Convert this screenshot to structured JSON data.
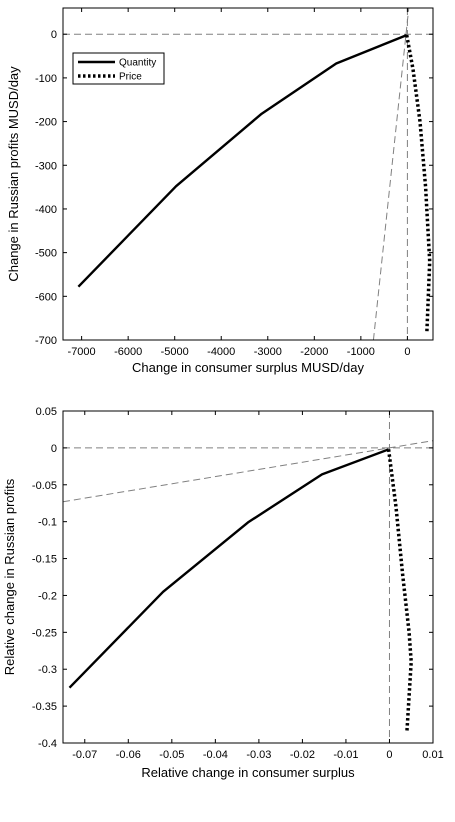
{
  "chart_data": [
    {
      "type": "line",
      "title": "",
      "xlabel": "Change in consumer surplus MUSD/day",
      "ylabel": "Change in Russian profits MUSD/day",
      "xlim": [
        -7400,
        550
      ],
      "ylim": [
        -700,
        60
      ],
      "xticks": [
        -7000,
        -6000,
        -5000,
        -4000,
        -3000,
        -2000,
        -1000,
        0
      ],
      "yticks": [
        0,
        -100,
        -200,
        -300,
        -400,
        -500,
        -600,
        -700
      ],
      "grid": false,
      "legend": {
        "placement": "top-left",
        "entries": [
          "Quantity",
          "Price"
        ]
      },
      "series": [
        {
          "name": "Quantity",
          "style": "solid",
          "color": "#000000",
          "points": [
            [
              -7070,
              -578
            ],
            [
              -4970,
              -348
            ],
            [
              -3130,
              -182
            ],
            [
              -1530,
              -67
            ],
            [
              -15,
              -2
            ]
          ]
        },
        {
          "name": "Price",
          "style": "dotted",
          "color": "#000000",
          "points": [
            [
              -15,
              -2
            ],
            [
              120,
              -80
            ],
            [
              270,
              -200
            ],
            [
              390,
              -350
            ],
            [
              480,
              -520
            ],
            [
              420,
              -680
            ]
          ]
        }
      ],
      "reference_lines": [
        {
          "kind": "hline",
          "y": 0,
          "color": "#808080",
          "style": "dashed"
        },
        {
          "kind": "vline",
          "x": 0,
          "color": "#808080",
          "style": "dashed"
        },
        {
          "kind": "segment",
          "from": [
            -730,
            -700
          ],
          "to": [
            30,
            60
          ],
          "color": "#808080",
          "style": "dashed"
        }
      ]
    },
    {
      "type": "line",
      "title": "",
      "xlabel": "Relative change in consumer surplus",
      "ylabel": "Relative change in Russian profits",
      "xlim": [
        -0.075,
        0.01
      ],
      "ylim": [
        -0.4,
        0.05
      ],
      "xticks": [
        -0.07,
        -0.06,
        -0.05,
        -0.04,
        -0.03,
        -0.02,
        -0.01,
        0,
        0.01
      ],
      "yticks": [
        0.05,
        0,
        -0.05,
        -0.1,
        -0.15,
        -0.2,
        -0.25,
        -0.3,
        -0.35,
        -0.4
      ],
      "grid": false,
      "legend": null,
      "series": [
        {
          "name": "Quantity",
          "style": "solid",
          "color": "#000000",
          "points": [
            [
              -0.0735,
              -0.325
            ],
            [
              -0.052,
              -0.195
            ],
            [
              -0.0325,
              -0.101
            ],
            [
              -0.0155,
              -0.036
            ],
            [
              -0.0002,
              -0.002
            ]
          ]
        },
        {
          "name": "Price",
          "style": "dotted",
          "color": "#000000",
          "points": [
            [
              -0.0002,
              -0.002
            ],
            [
              0.0015,
              -0.08
            ],
            [
              0.003,
              -0.17
            ],
            [
              0.0045,
              -0.25
            ],
            [
              0.005,
              -0.29
            ],
            [
              0.004,
              -0.385
            ]
          ]
        }
      ],
      "reference_lines": [
        {
          "kind": "hline",
          "y": 0,
          "color": "#808080",
          "style": "dashed"
        },
        {
          "kind": "vline",
          "x": 0,
          "color": "#808080",
          "style": "dashed"
        },
        {
          "kind": "segment",
          "from": [
            -0.075,
            -0.073
          ],
          "to": [
            0.01,
            0.0098
          ],
          "color": "#808080",
          "style": "dashed"
        }
      ]
    }
  ]
}
